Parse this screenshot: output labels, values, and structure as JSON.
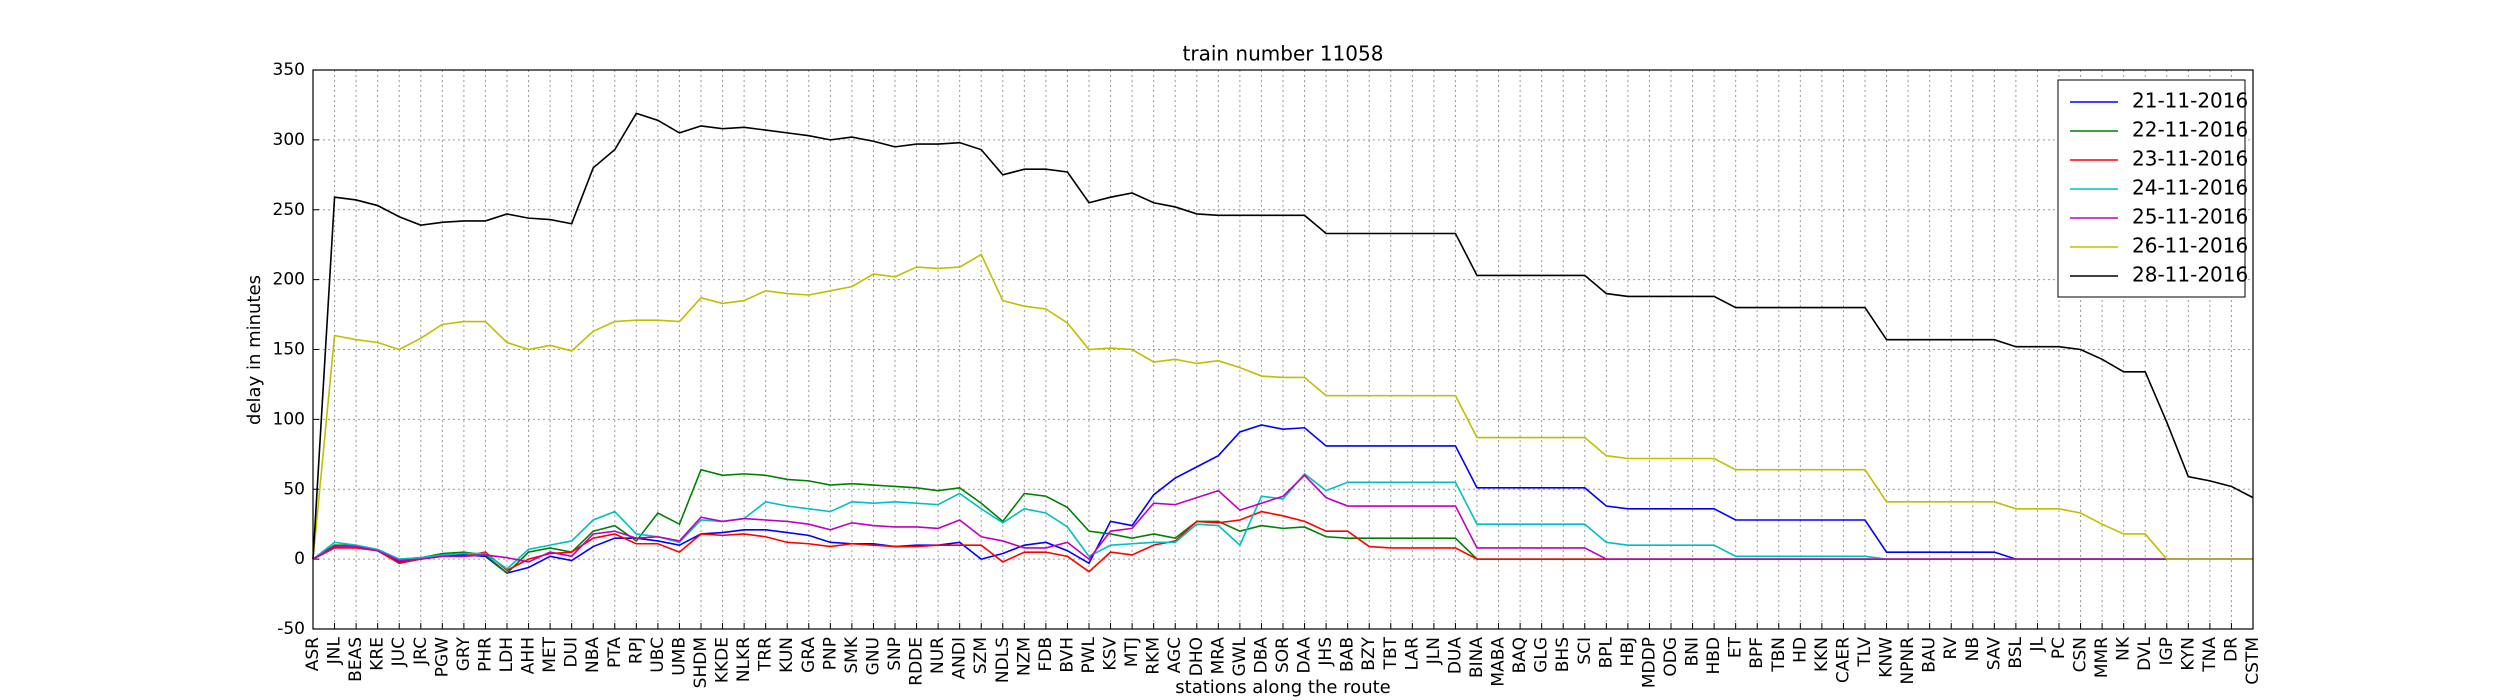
{
  "chart_data": {
    "type": "line",
    "title": "train number 11058",
    "xlabel": "stations along the route",
    "ylabel": "delay in minutes",
    "categories": [
      "ASR",
      "JNL",
      "BEAS",
      "KRE",
      "JUC",
      "JRC",
      "PGW",
      "GRY",
      "PHR",
      "LDH",
      "AHH",
      "MET",
      "DUI",
      "NBA",
      "PTA",
      "RPJ",
      "UBC",
      "UMB",
      "SHDM",
      "KKDE",
      "NLKR",
      "TRR",
      "KUN",
      "GRA",
      "PNP",
      "SMK",
      "GNU",
      "SNP",
      "RDDE",
      "NUR",
      "ANDI",
      "SZM",
      "NDLS",
      "NZM",
      "FDB",
      "BVH",
      "PWL",
      "KSV",
      "MTJ",
      "RKM",
      "AGC",
      "DHO",
      "MRA",
      "GWL",
      "DBA",
      "SOR",
      "DAA",
      "JHS",
      "BAB",
      "BZY",
      "TBT",
      "LAR",
      "JLN",
      "DUA",
      "BINA",
      "MABA",
      "BAQ",
      "GLG",
      "BHS",
      "SCI",
      "BPL",
      "HBJ",
      "MDDP",
      "ODG",
      "BNI",
      "HBD",
      "ET",
      "BPF",
      "TBN",
      "HD",
      "KKN",
      "CAER",
      "TLV",
      "KNW",
      "NPNR",
      "BAU",
      "RV",
      "NB",
      "SAV",
      "BSL",
      "JL",
      "PC",
      "CSN",
      "MMR",
      "NK",
      "DVL",
      "IGP",
      "KYN",
      "TNA",
      "DR",
      "CSTM"
    ],
    "series": [
      {
        "name": "21-11-2016",
        "color": "#0000ff",
        "values": [
          0,
          10,
          9,
          6,
          -2,
          0,
          3,
          3,
          2,
          -10,
          -6,
          2,
          -1,
          9,
          15,
          15,
          13,
          10,
          18,
          19,
          21,
          21,
          19,
          17,
          12,
          11,
          11,
          9,
          10,
          10,
          12,
          0,
          4,
          10,
          12,
          6,
          -3,
          27,
          24,
          46,
          58,
          66,
          74,
          91,
          96,
          93,
          94,
          81,
          81,
          81,
          81,
          81,
          81,
          81,
          51,
          51,
          51,
          51,
          51,
          51,
          38,
          36,
          36,
          36,
          36,
          36,
          28,
          28,
          28,
          28,
          28,
          28,
          28,
          5,
          5,
          5,
          5,
          5,
          5,
          0,
          0,
          0,
          0,
          0,
          0,
          0,
          0,
          0,
          0,
          0,
          0
        ]
      },
      {
        "name": "22-11-2016",
        "color": "#008000",
        "values": [
          0,
          10,
          10,
          6,
          0,
          1,
          4,
          5,
          3,
          -10,
          5,
          8,
          5,
          20,
          24,
          13,
          33,
          25,
          64,
          60,
          61,
          60,
          57,
          56,
          53,
          54,
          53,
          52,
          51,
          49,
          51,
          40,
          27,
          47,
          45,
          37,
          20,
          18,
          15,
          18,
          15,
          27,
          27,
          20,
          24,
          22,
          23,
          16,
          15,
          15,
          15,
          15,
          15,
          15,
          0,
          0,
          0,
          0,
          0,
          0,
          0,
          0,
          0,
          0,
          0,
          0,
          0,
          0,
          0,
          0,
          0,
          0,
          0,
          0,
          0,
          0,
          0,
          0,
          0,
          0,
          0,
          0,
          0,
          0,
          0,
          0,
          0,
          0,
          0,
          0,
          0
        ]
      },
      {
        "name": "23-11-2016",
        "color": "#ff0000",
        "values": [
          0,
          8,
          8,
          6,
          -3,
          0,
          2,
          2,
          5,
          -8,
          0,
          4,
          5,
          15,
          18,
          11,
          11,
          5,
          18,
          17,
          18,
          16,
          12,
          11,
          9,
          11,
          10,
          9,
          9,
          10,
          10,
          10,
          -2,
          5,
          5,
          2,
          -9,
          5,
          3,
          10,
          13,
          27,
          26,
          28,
          34,
          31,
          27,
          20,
          20,
          9,
          8,
          8,
          8,
          8,
          0,
          0,
          0,
          0,
          0,
          0,
          0,
          0,
          0,
          0,
          0,
          0,
          0,
          0,
          0,
          0,
          0,
          0,
          0,
          0,
          0,
          0,
          0,
          0,
          0,
          0,
          0,
          0,
          0,
          0,
          0,
          0,
          0,
          0,
          0,
          0,
          0
        ]
      },
      {
        "name": "24-11-2016",
        "color": "#00bfbf",
        "values": [
          0,
          12,
          10,
          7,
          0,
          1,
          3,
          4,
          4,
          -7,
          7,
          10,
          13,
          28,
          34,
          18,
          16,
          12,
          28,
          27,
          29,
          41,
          38,
          36,
          34,
          41,
          40,
          41,
          40,
          39,
          47,
          36,
          26,
          36,
          33,
          23,
          2,
          10,
          11,
          12,
          12,
          25,
          24,
          10,
          45,
          43,
          61,
          49,
          55,
          55,
          55,
          55,
          55,
          55,
          25,
          25,
          25,
          25,
          25,
          25,
          12,
          10,
          10,
          10,
          10,
          10,
          2,
          2,
          2,
          2,
          2,
          2,
          2,
          0,
          0,
          0,
          0,
          0,
          0,
          0,
          0,
          0,
          0,
          0,
          0,
          0,
          0,
          0,
          0,
          0,
          0
        ]
      },
      {
        "name": "25-11-2016",
        "color": "#bf00bf",
        "values": [
          0,
          9,
          9,
          6,
          -1,
          0,
          2,
          2,
          3,
          1,
          -2,
          5,
          2,
          18,
          20,
          15,
          16,
          13,
          30,
          27,
          29,
          28,
          27,
          25,
          21,
          26,
          24,
          23,
          23,
          22,
          28,
          16,
          13,
          8,
          8,
          12,
          0,
          20,
          22,
          40,
          39,
          44,
          49,
          35,
          40,
          45,
          60,
          44,
          38,
          38,
          38,
          38,
          38,
          38,
          8,
          8,
          8,
          8,
          8,
          8,
          0,
          0,
          0,
          0,
          0,
          0,
          0,
          0,
          0,
          0,
          0,
          0,
          0,
          0,
          0,
          0,
          0,
          0,
          0,
          0,
          0,
          0,
          0,
          0,
          0,
          0,
          0,
          0,
          0,
          0,
          0
        ]
      },
      {
        "name": "26-11-2016",
        "color": "#bfbf00",
        "values": [
          0,
          160,
          157,
          155,
          150,
          158,
          168,
          170,
          170,
          155,
          150,
          153,
          149,
          163,
          170,
          171,
          171,
          170,
          187,
          183,
          185,
          192,
          190,
          189,
          192,
          195,
          204,
          202,
          209,
          208,
          209,
          218,
          185,
          181,
          179,
          169,
          150,
          151,
          150,
          141,
          143,
          140,
          142,
          137,
          131,
          130,
          130,
          117,
          117,
          117,
          117,
          117,
          117,
          117,
          87,
          87,
          87,
          87,
          87,
          87,
          74,
          72,
          72,
          72,
          72,
          72,
          64,
          64,
          64,
          64,
          64,
          64,
          64,
          41,
          41,
          41,
          41,
          41,
          41,
          36,
          36,
          36,
          33,
          25,
          18,
          18,
          0,
          0,
          0,
          0,
          0
        ]
      },
      {
        "name": "28-11-2016",
        "color": "#000000",
        "values": [
          0,
          259,
          257,
          253,
          245,
          239,
          241,
          242,
          242,
          247,
          244,
          243,
          240,
          280,
          293,
          319,
          314,
          305,
          310,
          308,
          309,
          307,
          305,
          303,
          300,
          302,
          299,
          295,
          297,
          297,
          298,
          293,
          275,
          279,
          279,
          277,
          255,
          259,
          262,
          255,
          252,
          247,
          246,
          246,
          246,
          246,
          246,
          233,
          233,
          233,
          233,
          233,
          233,
          233,
          203,
          203,
          203,
          203,
          203,
          203,
          190,
          188,
          188,
          188,
          188,
          188,
          180,
          180,
          180,
          180,
          180,
          180,
          180,
          157,
          157,
          157,
          157,
          157,
          157,
          152,
          152,
          152,
          150,
          143,
          134,
          134,
          98,
          59,
          56,
          52,
          44
        ]
      }
    ],
    "ylim": [
      -50,
      350
    ],
    "yticks": [
      -50,
      0,
      50,
      100,
      150,
      200,
      250,
      300,
      350
    ],
    "grid": true,
    "legend": "upper right"
  }
}
